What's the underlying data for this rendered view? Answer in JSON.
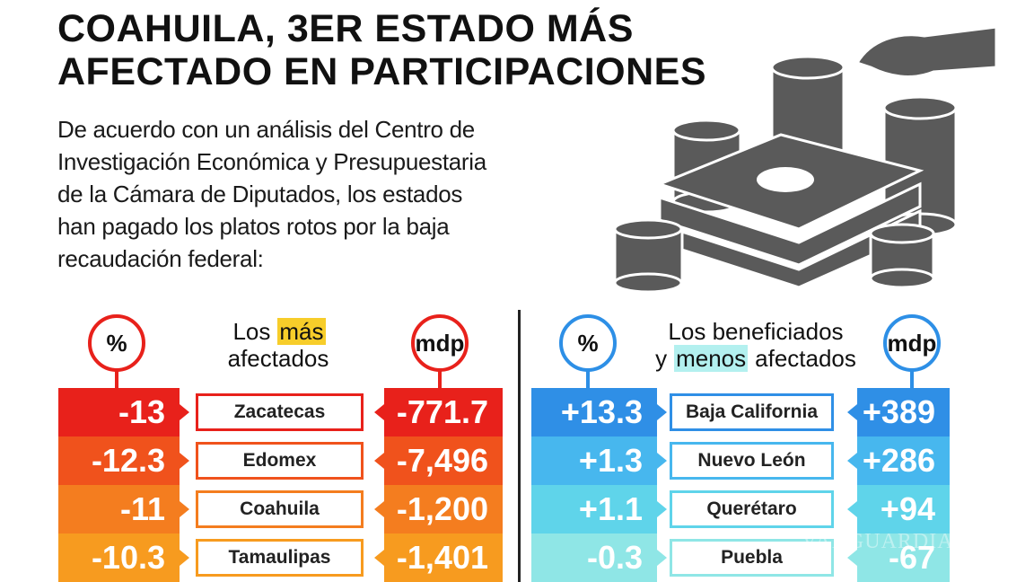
{
  "title": [
    "COAHUILA, 3ER ESTADO MÁS",
    "AFECTADO EN PARTICIPACIONES"
  ],
  "intro": [
    "De acuerdo con un análisis del Centro de",
    "Investigación Económica y Presupuestaria",
    "de la Cámara de Diputados, los estados",
    "han pagado los platos rotos por la baja",
    "recaudación federal:"
  ],
  "panels": [
    {
      "pct_header": "%",
      "mdp_header": "mdp",
      "accent": "#e8211b",
      "highlight_color": "#f7cd2a",
      "heading": [
        [
          "Los",
          {
            "text": "más",
            "highlight": true
          }
        ],
        [
          "afectados"
        ]
      ],
      "colors": [
        "#e8211b",
        "#f0521c",
        "#f47d1f",
        "#f79b1f"
      ],
      "rows": [
        {
          "pct": "-13",
          "state": "Zacatecas",
          "mdp": "-771.7"
        },
        {
          "pct": "-12.3",
          "state": "Edomex",
          "mdp": "-7,496"
        },
        {
          "pct": "-11",
          "state": "Coahuila",
          "mdp": "-1,200"
        },
        {
          "pct": "-10.3",
          "state": "Tamaulipas",
          "mdp": "-1,401"
        }
      ]
    },
    {
      "pct_header": "%",
      "mdp_header": "mdp",
      "accent": "#2d8fe6",
      "highlight_color": "#b3f0ef",
      "heading": [
        [
          "Los beneficiados"
        ],
        [
          "y",
          {
            "text": "menos",
            "highlight": true
          },
          "afectados"
        ]
      ],
      "colors": [
        "#2f8fe6",
        "#47b7ee",
        "#5fd4ea",
        "#8fe6e6"
      ],
      "rows": [
        {
          "pct": "+13.3",
          "state": "Baja California",
          "mdp": "+389"
        },
        {
          "pct": "+1.3",
          "state": "Nuevo León",
          "mdp": "+286"
        },
        {
          "pct": "+1.1",
          "state": "Querétaro",
          "mdp": "+94"
        },
        {
          "pct": "-0.3",
          "state": "Puebla",
          "mdp": "-67"
        }
      ]
    }
  ],
  "watermark": "VANGUARDIA"
}
